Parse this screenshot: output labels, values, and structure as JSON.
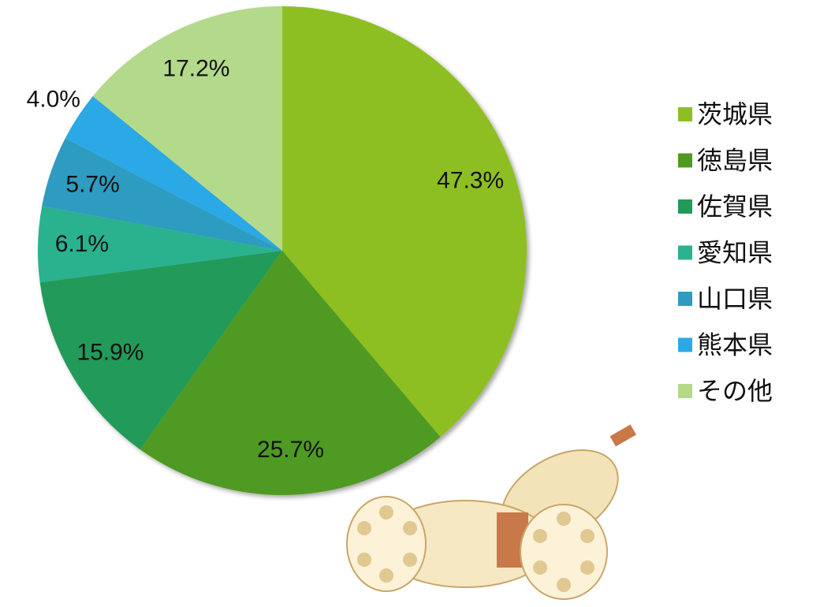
{
  "chart_data": {
    "type": "pie",
    "categories": [
      "茨城県",
      "徳島県",
      "佐賀県",
      "愛知県",
      "山口県",
      "熊本県",
      "その他"
    ],
    "values": [
      47.3,
      25.7,
      15.9,
      6.1,
      5.7,
      4.0,
      17.2
    ],
    "value_labels": [
      "47.3%",
      "25.7%",
      "15.9%",
      "6.1%",
      "5.7%",
      "4.0%",
      "17.2%"
    ],
    "colors": [
      "#8dbf24",
      "#4f9a22",
      "#229a5a",
      "#2bb28f",
      "#2f9bc0",
      "#2aa9e6",
      "#b3d98a"
    ],
    "legend": "right"
  }
}
